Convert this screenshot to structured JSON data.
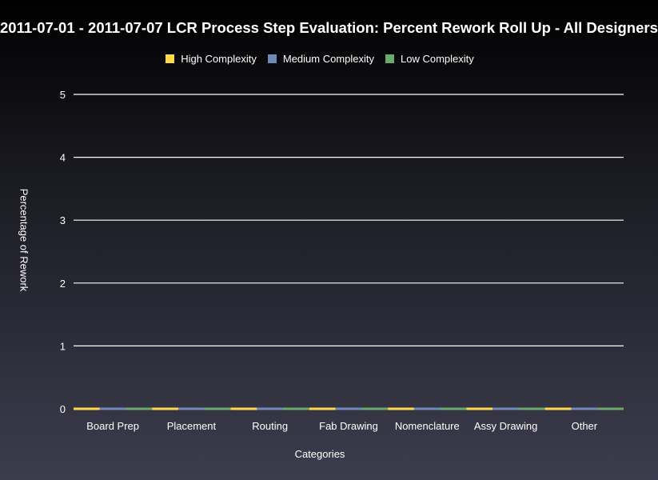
{
  "chart_data": {
    "type": "bar",
    "title": "2011-07-01 - 2011-07-07 LCR Process Step Evaluation: Percent Rework Roll Up - All Designers",
    "xlabel": "Categories",
    "ylabel": "Percentage of Rework",
    "categories": [
      "Board Prep",
      "Placement",
      "Routing",
      "Fab Drawing",
      "Nomenclature",
      "Assy Drawing",
      "Other"
    ],
    "series": [
      {
        "name": "High Complexity",
        "color": "#ffd94a",
        "values": [
          0,
          0,
          0,
          0,
          0,
          0,
          0
        ]
      },
      {
        "name": "Medium Complexity",
        "color": "#6f8ab8",
        "values": [
          0,
          0,
          0,
          0,
          0,
          0,
          0
        ]
      },
      {
        "name": "Low Complexity",
        "color": "#6aab6a",
        "values": [
          0,
          0,
          0,
          0,
          0,
          0,
          0
        ]
      }
    ],
    "ylim": [
      0,
      5
    ],
    "yticks": [
      "0",
      "1",
      "2",
      "3",
      "4",
      "5"
    ],
    "grid": true,
    "legend_position": "top-center"
  }
}
